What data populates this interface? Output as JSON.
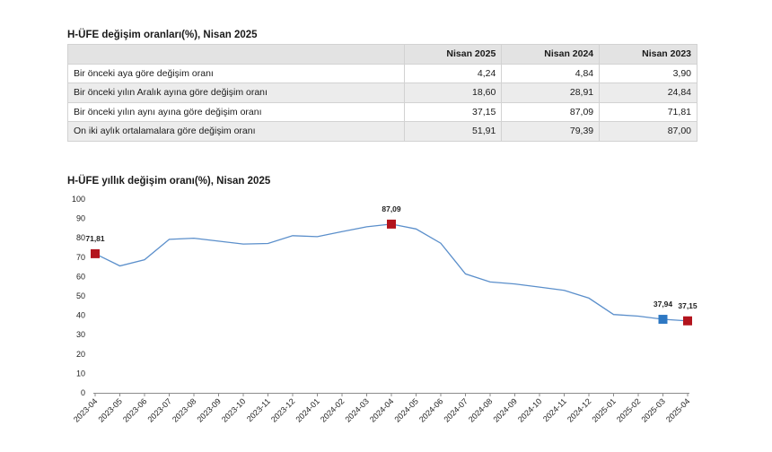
{
  "table": {
    "title": "H-ÜFE değişim oranları(%), Nisan 2025",
    "headers": [
      "",
      "Nisan 2025",
      "Nisan 2024",
      "Nisan 2023"
    ],
    "rows": [
      [
        "Bir önceki aya göre değişim oranı",
        "4,24",
        "4,84",
        "3,90"
      ],
      [
        "Bir önceki yılın Aralık ayına göre değişim oranı",
        "18,60",
        "28,91",
        "24,84"
      ],
      [
        "Bir önceki yılın aynı ayına göre değişim oranı",
        "37,15",
        "87,09",
        "71,81"
      ],
      [
        "On iki aylık ortalamalara göre değişim oranı",
        "51,91",
        "79,39",
        "87,00"
      ]
    ]
  },
  "chart_data": {
    "type": "line",
    "title": "H-ÜFE yıllık değişim oranı(%), Nisan 2025",
    "xlabel": "",
    "ylabel": "",
    "ylim": [
      0,
      100
    ],
    "yticks": [
      0,
      10,
      20,
      30,
      40,
      50,
      60,
      70,
      80,
      90,
      100
    ],
    "x": [
      "2023-04",
      "2023-05",
      "2023-06",
      "2023-07",
      "2023-08",
      "2023-09",
      "2023-10",
      "2023-11",
      "2023-12",
      "2024-01",
      "2024-02",
      "2024-03",
      "2024-04",
      "2024-05",
      "2024-06",
      "2024-07",
      "2024-08",
      "2024-09",
      "2024-10",
      "2024-11",
      "2024-12",
      "2025-01",
      "2025-02",
      "2025-03",
      "2025-04"
    ],
    "series": [
      {
        "values": [
          71.81,
          65.5,
          68.7,
          79.2,
          79.8,
          78.3,
          76.8,
          77.1,
          81.1,
          80.6,
          83.2,
          85.7,
          87.09,
          84.6,
          77.2,
          61.4,
          57.2,
          56.2,
          54.6,
          52.9,
          48.9,
          40.4,
          39.6,
          37.94,
          37.15
        ],
        "color": "#5b8fcb"
      }
    ],
    "markers": [
      {
        "index": 0,
        "label": "71,81",
        "color": "#b3141d"
      },
      {
        "index": 12,
        "label": "87,09",
        "color": "#b3141d"
      },
      {
        "index": 23,
        "label": "37,94",
        "color": "#2e78c3"
      },
      {
        "index": 24,
        "label": "37,15",
        "color": "#b3141d"
      }
    ],
    "grid": false,
    "legend": "none"
  }
}
